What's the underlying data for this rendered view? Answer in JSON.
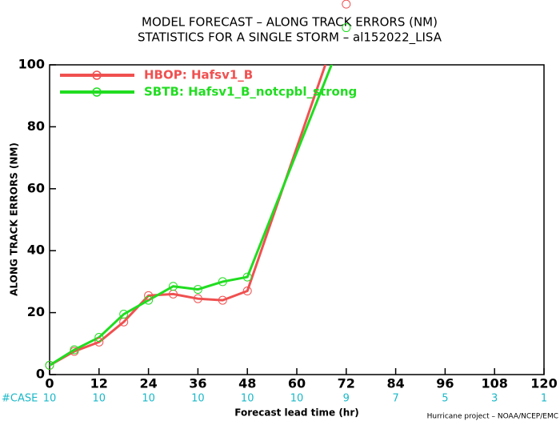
{
  "chart_data": {
    "type": "line",
    "title": "MODEL FORECAST – ALONG TRACK ERRORS (NM)",
    "subtitle": "STATISTICS FOR A SINGLE STORM – al152022_LISA",
    "x_label": "Forecast lead time (hr)",
    "y_label": "ALONG TRACK ERRORS (NM)",
    "footer": "Hurricane project – NOAA/NCEP/EMC",
    "x": [
      0,
      6,
      12,
      18,
      24,
      30,
      36,
      42,
      48,
      72
    ],
    "series": [
      {
        "name": "HBOP: Hafsv1_B",
        "color": "#f05050",
        "values": [
          3,
          7.5,
          10.5,
          17,
          25.5,
          26,
          24.5,
          24,
          27,
          119.6
        ]
      },
      {
        "name": "SBTB: Hafsv1_B_notcpbl_strong",
        "color": "#20dd20",
        "values": [
          3,
          8,
          12,
          19.5,
          24,
          28.5,
          27.5,
          30,
          31.5,
          112
        ]
      }
    ],
    "xlim": [
      0,
      120
    ],
    "xticks": [
      0,
      12,
      24,
      36,
      48,
      60,
      72,
      84,
      96,
      108,
      120
    ],
    "ylim": [
      0,
      100
    ],
    "yticks": [
      0,
      20,
      40,
      60,
      80,
      100
    ],
    "cases": {
      "label": "#CASE",
      "values": [
        10,
        10,
        10,
        10,
        10,
        10,
        9,
        7,
        5,
        3,
        1
      ]
    },
    "legend": "upper left"
  }
}
